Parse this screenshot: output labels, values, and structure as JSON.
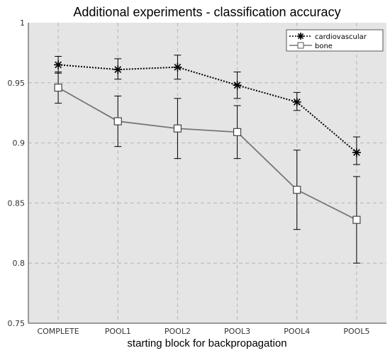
{
  "chart_data": {
    "type": "line",
    "title": "Additional experiments - classification accuracy",
    "xlabel": "starting block for backpropagation",
    "ylabel": "",
    "categories": [
      "COMPLETE",
      "POOL1",
      "POOL2",
      "POOL3",
      "POOL4",
      "POOL5"
    ],
    "ylim": [
      0.75,
      1.0
    ],
    "yticks": [
      "0.75",
      "0.8",
      "0.85",
      "0.9",
      "0.95",
      "1"
    ],
    "grid": true,
    "legend_position": "top-right",
    "series": [
      {
        "name": "cardiovascular",
        "marker": "asterisk",
        "line_style": "dotted",
        "color": "#000000",
        "values": [
          0.965,
          0.961,
          0.963,
          0.948,
          0.934,
          0.892
        ],
        "error_low": [
          0.958,
          0.953,
          0.953,
          0.937,
          0.927,
          0.882
        ],
        "error_high": [
          0.972,
          0.97,
          0.973,
          0.959,
          0.942,
          0.905
        ]
      },
      {
        "name": "bone",
        "marker": "square",
        "line_style": "solid",
        "color": "#777777",
        "values": [
          0.946,
          0.918,
          0.912,
          0.909,
          0.861,
          0.836
        ],
        "error_low": [
          0.933,
          0.897,
          0.887,
          0.887,
          0.828,
          0.8
        ],
        "error_high": [
          0.959,
          0.939,
          0.937,
          0.931,
          0.894,
          0.872
        ]
      }
    ]
  }
}
